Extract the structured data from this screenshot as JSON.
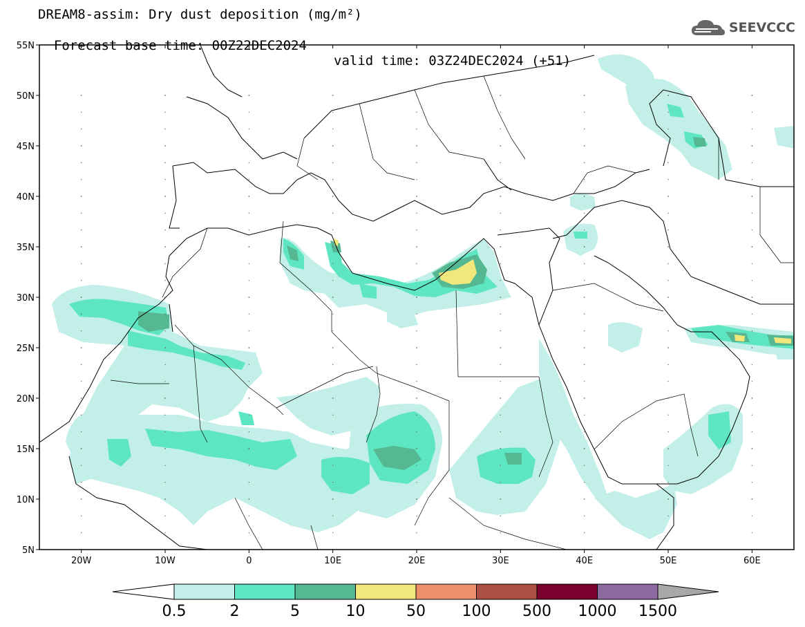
{
  "title": {
    "line1": "DREAM8-assim: Dry dust deposition (mg/m²)",
    "base_time": "Forecast base time: 00Z22DEC2024",
    "valid_time": "valid time: 03Z24DEC2024 (+51)"
  },
  "logo": {
    "text": "SEEVCCC",
    "icon": "cloud-icon"
  },
  "map": {
    "lon_range": [
      -25,
      65
    ],
    "lat_range": [
      5,
      55
    ],
    "lat_ticks": [
      "5N",
      "10N",
      "15N",
      "20N",
      "25N",
      "30N",
      "35N",
      "40N",
      "45N",
      "50N",
      "55N"
    ],
    "lon_ticks": [
      "20W",
      "10W",
      "0",
      "10E",
      "20E",
      "30E",
      "40E",
      "50E",
      "60E"
    ]
  },
  "colorbar": {
    "labels": [
      "0.5",
      "2",
      "5",
      "10",
      "50",
      "100",
      "500",
      "1000",
      "1500"
    ],
    "colors": [
      "#c2f0e9",
      "#5de6c1",
      "#55b892",
      "#f2e77a",
      "#ec8f6a",
      "#ad4e42",
      "#7a0030",
      "#8c6aa0",
      "#a8a8a8"
    ]
  }
}
